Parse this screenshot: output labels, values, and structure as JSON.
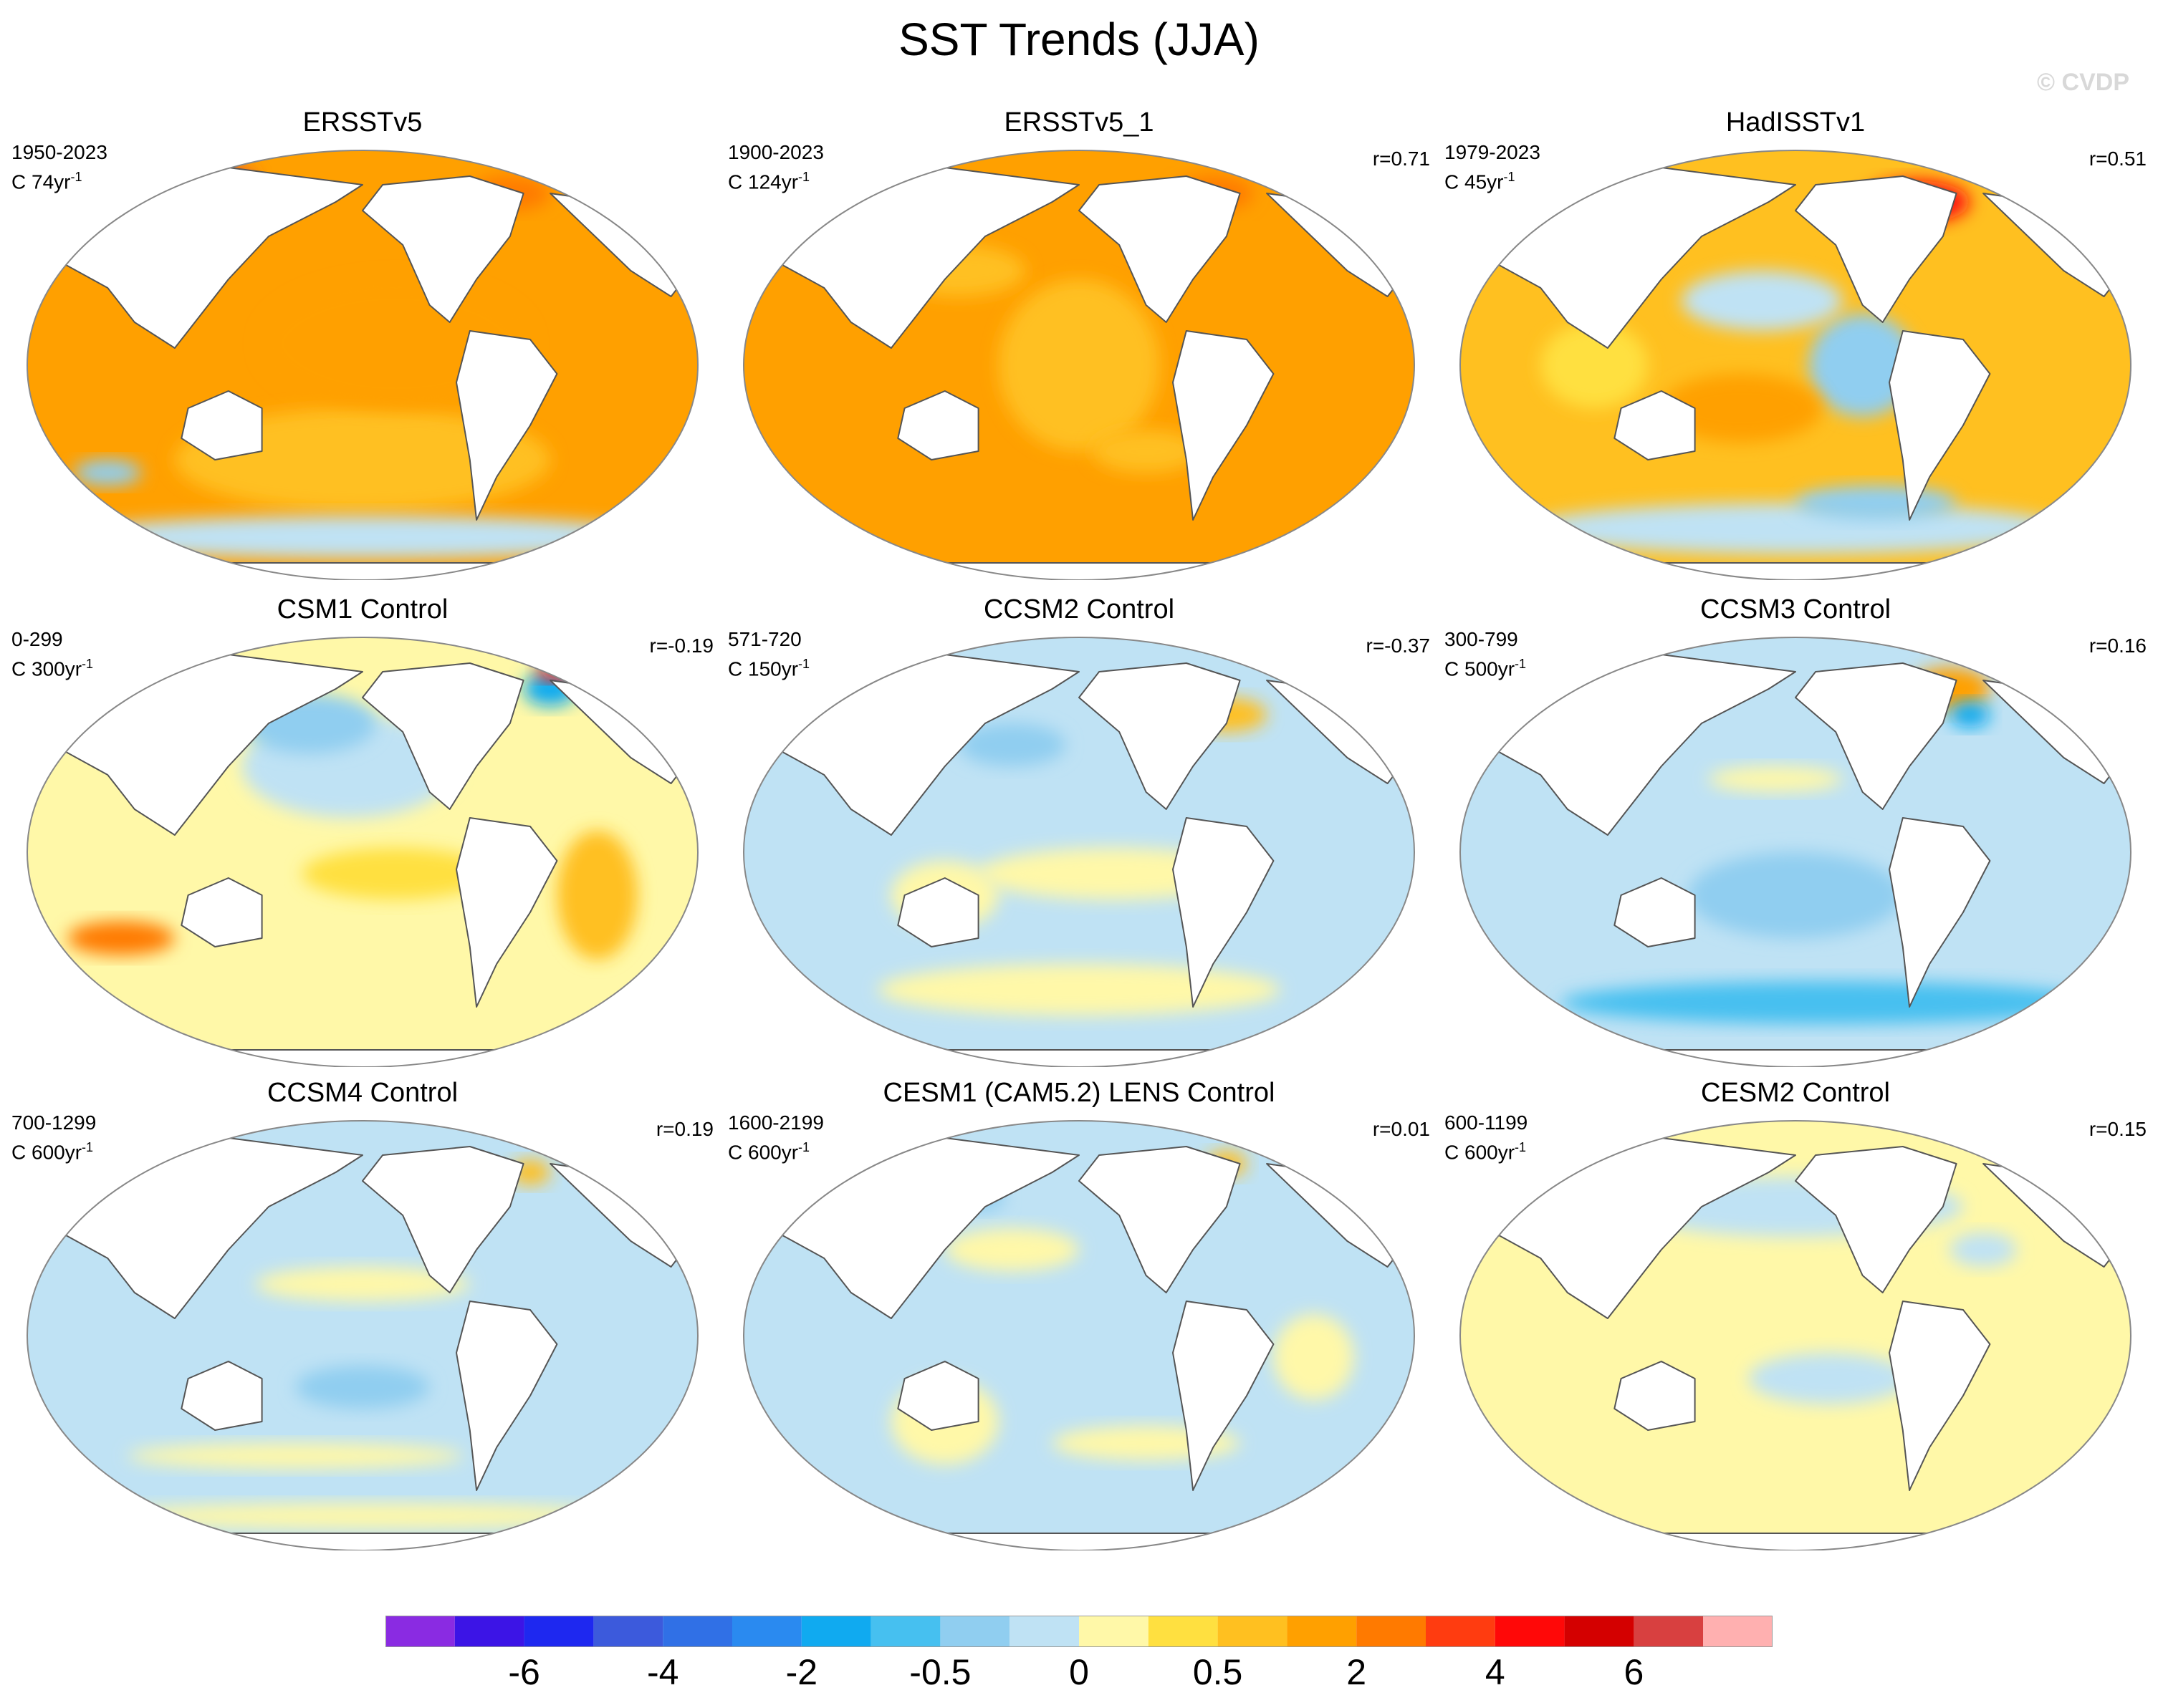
{
  "title": "SST Trends (JJA)",
  "watermark": "© CVDP",
  "palette": {
    "land": "#ffffff",
    "coast": "#555555",
    "frame": "#888888",
    "colors": [
      "#8a2be2",
      "#3c14e6",
      "#1e28f0",
      "#3c5adc",
      "#3070e6",
      "#2a8af0",
      "#10aaf0",
      "#46c0f0",
      "#90cef0",
      "#bfe2f4",
      "#fff8a8",
      "#ffe040",
      "#ffc020",
      "#ffa000",
      "#ff7a00",
      "#ff3c10",
      "#ff0808",
      "#d40000",
      "#d84040",
      "#ffb0b0"
    ]
  },
  "colorbar_labels": [
    "-6",
    "-4",
    "-2",
    "-0.5",
    "0",
    "0.5",
    "2",
    "4",
    "6"
  ],
  "panels": [
    {
      "name": "ERSSTv5",
      "period": "1950-2023",
      "scale": "C 74yr",
      "corr": "",
      "bg": 13,
      "blobs": [
        [
          12,
          0.5,
          0.72,
          0.28,
          0.12
        ],
        [
          13,
          0.55,
          0.45,
          0.2,
          0.15
        ],
        [
          8,
          0.12,
          0.75,
          0.05,
          0.03
        ],
        [
          18,
          0.28,
          0.07,
          0.06,
          0.03
        ],
        [
          14,
          0.72,
          0.1,
          0.06,
          0.04
        ],
        [
          9,
          0.5,
          0.9,
          0.45,
          0.05
        ]
      ]
    },
    {
      "name": "ERSSTv5_1",
      "period": "1900-2023",
      "scale": "C 124yr",
      "corr": "r=0.71",
      "bg": 13,
      "blobs": [
        [
          12,
          0.5,
          0.5,
          0.12,
          0.2
        ],
        [
          12,
          0.32,
          0.28,
          0.1,
          0.06
        ],
        [
          18,
          0.22,
          0.07,
          0.06,
          0.03
        ],
        [
          14,
          0.7,
          0.1,
          0.06,
          0.04
        ],
        [
          12,
          0.6,
          0.7,
          0.08,
          0.05
        ]
      ]
    },
    {
      "name": "HadISSTv1",
      "period": "1979-2023",
      "scale": "C 45yr",
      "corr": "r=0.51",
      "bg": 12,
      "blobs": [
        [
          8,
          0.6,
          0.5,
          0.08,
          0.12
        ],
        [
          9,
          0.45,
          0.35,
          0.12,
          0.07
        ],
        [
          11,
          0.2,
          0.5,
          0.08,
          0.1
        ],
        [
          9,
          0.5,
          0.88,
          0.4,
          0.06
        ],
        [
          8,
          0.62,
          0.82,
          0.12,
          0.04
        ],
        [
          16,
          0.68,
          0.12,
          0.08,
          0.05
        ],
        [
          13,
          0.42,
          0.6,
          0.12,
          0.08
        ]
      ]
    },
    {
      "name": "CSM1 Control",
      "period": "0-299",
      "scale": "C 300yr",
      "corr": "r=-0.19",
      "bg": 10,
      "blobs": [
        [
          9,
          0.48,
          0.3,
          0.16,
          0.12
        ],
        [
          8,
          0.42,
          0.2,
          0.1,
          0.07
        ],
        [
          12,
          0.85,
          0.6,
          0.06,
          0.15
        ],
        [
          14,
          0.14,
          0.7,
          0.08,
          0.04
        ],
        [
          11,
          0.55,
          0.55,
          0.14,
          0.06
        ],
        [
          6,
          0.78,
          0.12,
          0.04,
          0.04
        ],
        [
          16,
          0.79,
          0.08,
          0.03,
          0.02
        ]
      ]
    },
    {
      "name": "CCSM2 Control",
      "period": "571-720",
      "scale": "C 150yr",
      "corr": "r=-0.37",
      "bg": 9,
      "blobs": [
        [
          10,
          0.55,
          0.55,
          0.2,
          0.06
        ],
        [
          10,
          0.3,
          0.6,
          0.08,
          0.08
        ],
        [
          12,
          0.72,
          0.18,
          0.06,
          0.04
        ],
        [
          8,
          0.4,
          0.25,
          0.08,
          0.05
        ],
        [
          10,
          0.5,
          0.82,
          0.3,
          0.06
        ]
      ]
    },
    {
      "name": "CCSM3 Control",
      "period": "300-799",
      "scale": "C 500yr",
      "corr": "r=0.16",
      "bg": 9,
      "blobs": [
        [
          7,
          0.55,
          0.85,
          0.4,
          0.05
        ],
        [
          8,
          0.5,
          0.6,
          0.16,
          0.1
        ],
        [
          10,
          0.47,
          0.33,
          0.1,
          0.03
        ],
        [
          13,
          0.73,
          0.12,
          0.06,
          0.05
        ],
        [
          6,
          0.76,
          0.18,
          0.03,
          0.03
        ]
      ]
    },
    {
      "name": "CCSM4 Control",
      "period": "700-1299",
      "scale": "C 600yr",
      "corr": "r=0.19",
      "bg": 9,
      "blobs": [
        [
          10,
          0.5,
          0.38,
          0.16,
          0.04
        ],
        [
          10,
          0.4,
          0.78,
          0.25,
          0.03
        ],
        [
          10,
          0.5,
          0.92,
          0.4,
          0.03
        ],
        [
          12,
          0.75,
          0.12,
          0.03,
          0.03
        ],
        [
          8,
          0.5,
          0.62,
          0.1,
          0.05
        ]
      ]
    },
    {
      "name": "CESM1 (CAM5.2) LENS Control",
      "period": "1600-2199",
      "scale": "C 600yr",
      "corr": "r=0.01",
      "bg": 9,
      "blobs": [
        [
          10,
          0.4,
          0.3,
          0.1,
          0.05
        ],
        [
          10,
          0.3,
          0.7,
          0.08,
          0.1
        ],
        [
          10,
          0.6,
          0.75,
          0.14,
          0.04
        ],
        [
          10,
          0.85,
          0.55,
          0.06,
          0.1
        ],
        [
          8,
          0.35,
          0.18,
          0.04,
          0.03
        ],
        [
          12,
          0.72,
          0.1,
          0.03,
          0.03
        ]
      ]
    },
    {
      "name": "CESM2 Control",
      "period": "600-1199",
      "scale": "C 600yr",
      "corr": "r=0.15",
      "bg": 10,
      "blobs": [
        [
          9,
          0.55,
          0.6,
          0.12,
          0.06
        ],
        [
          9,
          0.5,
          0.2,
          0.25,
          0.07
        ],
        [
          9,
          0.78,
          0.3,
          0.05,
          0.04
        ]
      ]
    }
  ]
}
